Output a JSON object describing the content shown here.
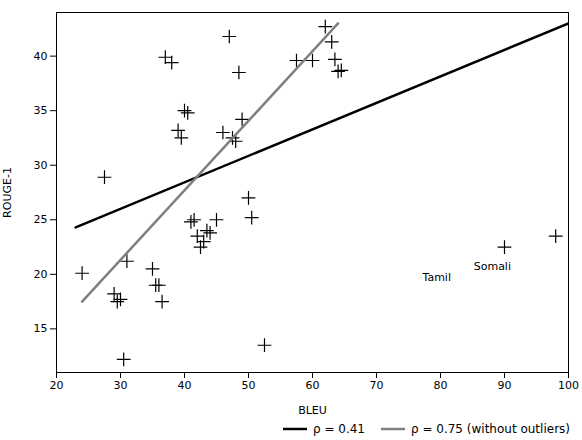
{
  "chart_data": {
    "type": "scatter",
    "title": "",
    "xlabel": "BLEU",
    "ylabel": "ROUGE-1",
    "xlim": [
      20,
      100
    ],
    "ylim": [
      11,
      44
    ],
    "xticks": [
      20,
      30,
      40,
      50,
      60,
      70,
      80,
      90,
      100
    ],
    "yticks": [
      15,
      20,
      25,
      30,
      35,
      40
    ],
    "grid": false,
    "legend": "lower right",
    "color": "black",
    "marker": "+",
    "x": [
      24.0,
      27.5,
      29.0,
      29.5,
      30.0,
      30.5,
      31.0,
      35.0,
      35.5,
      36.0,
      36.5,
      37.0,
      38.0,
      39.0,
      39.5,
      40.0,
      40.5,
      41.0,
      41.5,
      42.0,
      42.5,
      43.0,
      43.5,
      44.0,
      45.0,
      46.0,
      47.0,
      47.5,
      48.0,
      48.5,
      49.0,
      50.0,
      50.5,
      52.5,
      57.5,
      60.0,
      62.0,
      63.0,
      63.5,
      64.0,
      64.5,
      90.0,
      98.0
    ],
    "values": [
      20.1,
      28.9,
      18.2,
      17.5,
      17.7,
      12.2,
      21.2,
      20.5,
      19.0,
      19.0,
      17.5,
      39.9,
      39.4,
      33.2,
      32.5,
      35.0,
      34.8,
      24.8,
      25.0,
      23.5,
      22.5,
      23.0,
      24.0,
      23.8,
      25.0,
      33.0,
      41.8,
      32.5,
      32.2,
      38.5,
      34.2,
      27.0,
      25.2,
      13.5,
      39.6,
      39.6,
      42.7,
      41.3,
      39.7,
      38.6,
      38.7,
      22.5,
      23.5
    ],
    "series": [
      {
        "name": "ρ = 0.41",
        "type": "line",
        "color": "black",
        "x": [
          23,
          100
        ],
        "values": [
          24.3,
          43.0
        ]
      },
      {
        "name": "ρ = 0.75 (without outliers)",
        "type": "line",
        "color": "gray",
        "x": [
          24,
          64
        ],
        "values": [
          17.5,
          43.0
        ]
      }
    ],
    "annotations": [
      {
        "text": "Tamil",
        "x": 90.0,
        "y": 22.5
      },
      {
        "text": "Somali",
        "x": 98.0,
        "y": 23.5
      }
    ]
  }
}
